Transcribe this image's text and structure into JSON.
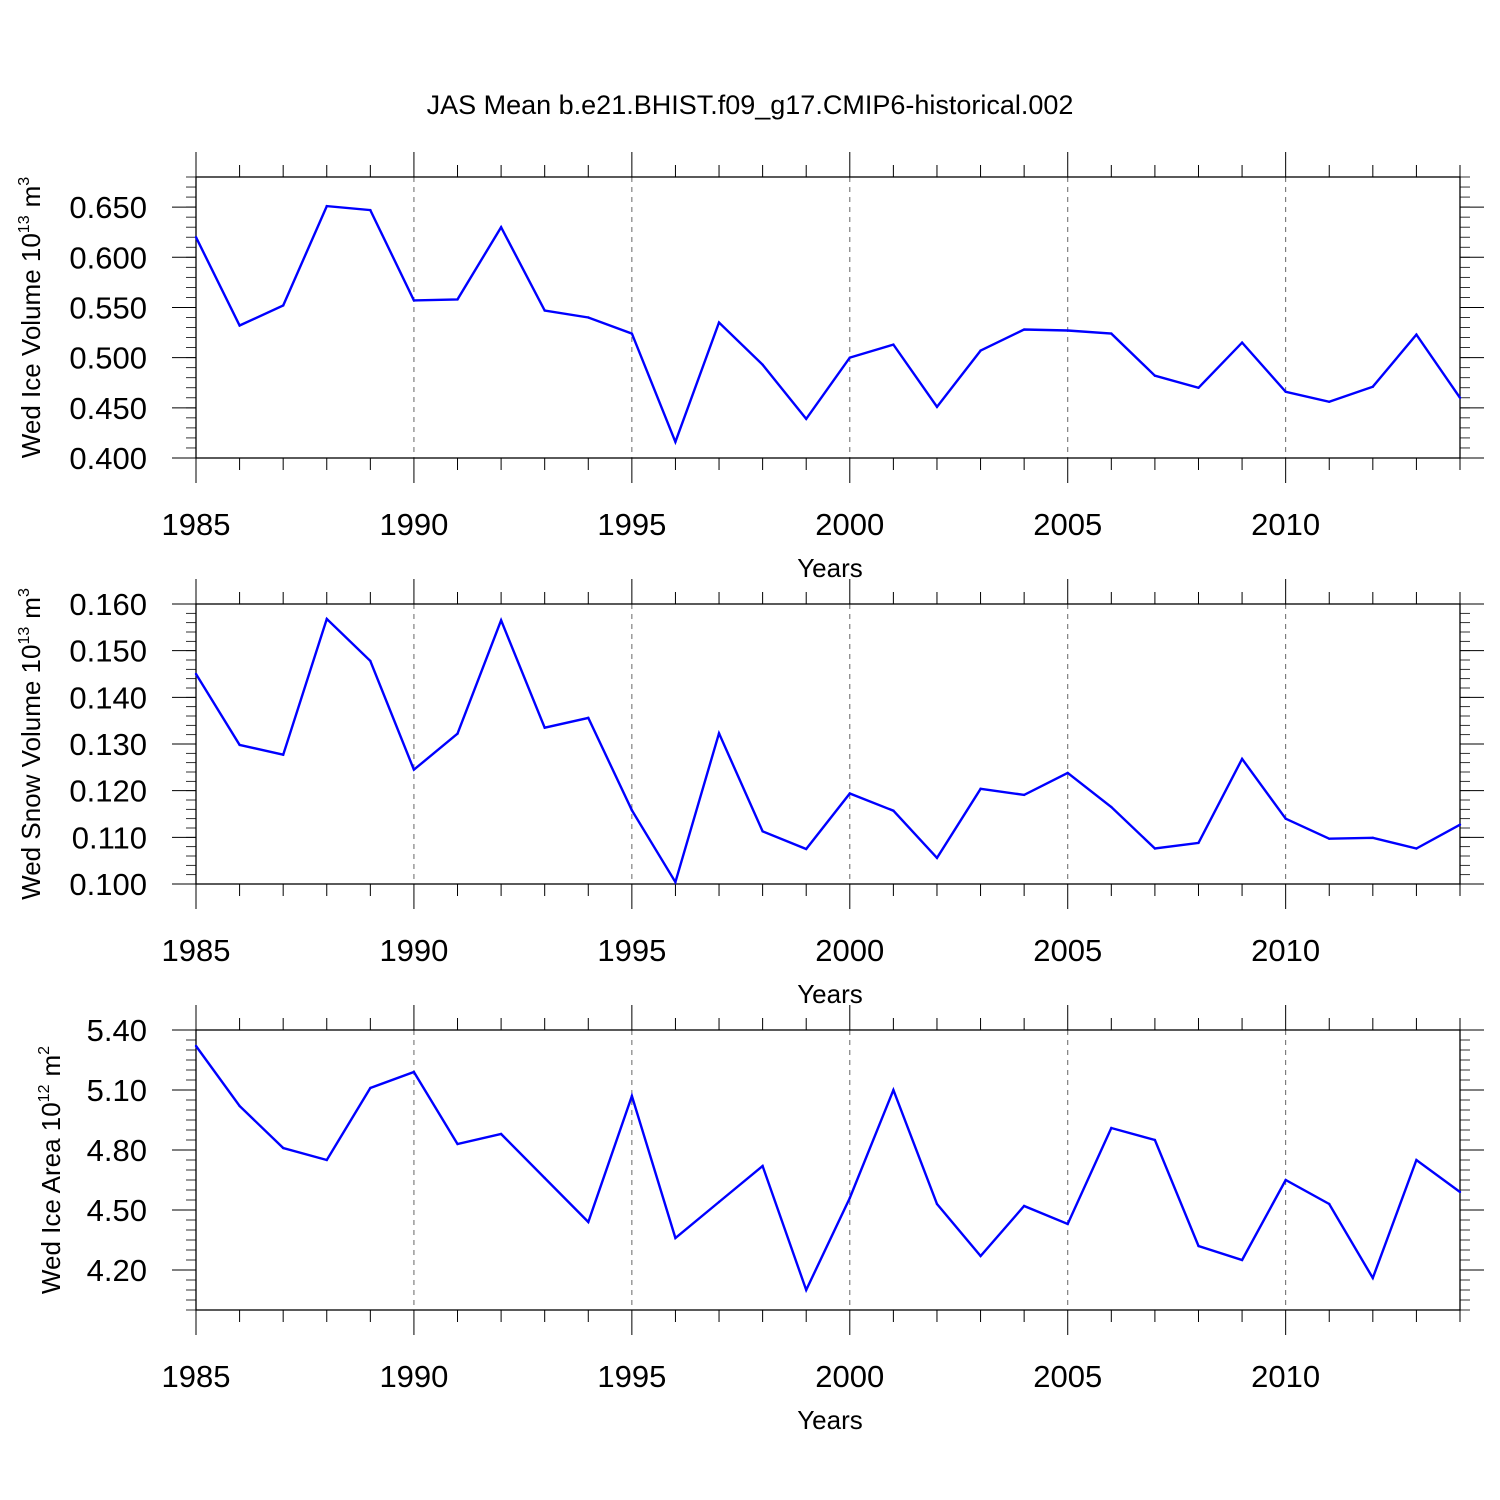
{
  "chart_data": {
    "title": "JAS Mean b.e21.BHIST.f09_g17.CMIP6-historical.002",
    "panels": [
      {
        "type": "line",
        "ylabel": "Wed Ice Volume 10",
        "ylabel_exp": "13",
        "ylabel_unit": "m",
        "ylabel_unit_exp": "3",
        "xlabel": "Years",
        "xlim": [
          1985,
          2014
        ],
        "ylim": [
          0.4,
          0.68
        ],
        "yticks": [
          "0.400",
          "0.450",
          "0.500",
          "0.550",
          "0.600",
          "0.650"
        ],
        "xticks": [
          "1985",
          "1990",
          "1995",
          "2000",
          "2005",
          "2010"
        ],
        "grid": "vertical dashed at major x ticks",
        "color": "#0000ff",
        "x": [
          1985,
          1986,
          1987,
          1988,
          1989,
          1990,
          1991,
          1992,
          1993,
          1994,
          1995,
          1996,
          1997,
          1998,
          1999,
          2000,
          2001,
          2002,
          2003,
          2004,
          2005,
          2006,
          2007,
          2008,
          2009,
          2010,
          2011,
          2012,
          2013,
          2014
        ],
        "values": [
          0.62,
          0.532,
          0.552,
          0.651,
          0.647,
          0.557,
          0.558,
          0.63,
          0.547,
          0.54,
          0.524,
          0.416,
          0.535,
          0.493,
          0.439,
          0.5,
          0.513,
          0.451,
          0.507,
          0.528,
          0.527,
          0.524,
          0.482,
          0.47,
          0.515,
          0.466,
          0.456,
          0.471,
          0.523,
          0.46
        ]
      },
      {
        "type": "line",
        "ylabel": "Wed Snow Volume 10",
        "ylabel_exp": "13",
        "ylabel_unit": "m",
        "ylabel_unit_exp": "3",
        "xlabel": "Years",
        "xlim": [
          1985,
          2014
        ],
        "ylim": [
          0.1,
          0.16
        ],
        "yticks": [
          "0.100",
          "0.110",
          "0.120",
          "0.130",
          "0.140",
          "0.150",
          "0.160"
        ],
        "xticks": [
          "1985",
          "1990",
          "1995",
          "2000",
          "2005",
          "2010"
        ],
        "grid": "vertical dashed at major x ticks",
        "color": "#0000ff",
        "x": [
          1985,
          1986,
          1987,
          1988,
          1989,
          1990,
          1991,
          1992,
          1993,
          1994,
          1995,
          1996,
          1997,
          1998,
          1999,
          2000,
          2001,
          2002,
          2003,
          2004,
          2005,
          2006,
          2007,
          2008,
          2009,
          2010,
          2011,
          2012,
          2013,
          2014
        ],
        "values": [
          0.145,
          0.1298,
          0.1277,
          0.1568,
          0.1478,
          0.1245,
          0.1322,
          0.1565,
          0.1335,
          0.1356,
          0.1158,
          0.1004,
          0.1323,
          0.1113,
          0.1075,
          0.1194,
          0.1157,
          0.1056,
          0.1204,
          0.1191,
          0.1238,
          0.1165,
          0.1076,
          0.1088,
          0.1268,
          0.114,
          0.1097,
          0.1099,
          0.1076,
          0.1127
        ]
      },
      {
        "type": "line",
        "ylabel": "Wed Ice Area 10",
        "ylabel_exp": "12",
        "ylabel_unit": "m",
        "ylabel_unit_exp": "2",
        "xlabel": "Years",
        "xlim": [
          1985,
          2014
        ],
        "ylim": [
          4.0,
          5.4
        ],
        "yticks": [
          "4.20",
          "4.50",
          "4.80",
          "5.10",
          "5.40"
        ],
        "xticks": [
          "1985",
          "1990",
          "1995",
          "2000",
          "2005",
          "2010"
        ],
        "grid": "vertical dashed at major x ticks",
        "color": "#0000ff",
        "x": [
          1985,
          1986,
          1987,
          1988,
          1989,
          1990,
          1991,
          1992,
          1993,
          1994,
          1995,
          1996,
          1997,
          1998,
          1999,
          2000,
          2001,
          2002,
          2003,
          2004,
          2005,
          2006,
          2007,
          2008,
          2009,
          2010,
          2011,
          2012,
          2013,
          2014
        ],
        "values": [
          5.32,
          5.02,
          4.81,
          4.75,
          5.11,
          5.19,
          4.83,
          4.88,
          4.66,
          4.44,
          5.07,
          4.36,
          4.54,
          4.72,
          4.1,
          4.56,
          5.1,
          4.53,
          4.27,
          4.52,
          4.43,
          4.91,
          4.85,
          4.32,
          4.25,
          4.65,
          4.53,
          4.16,
          4.75,
          4.59
        ]
      }
    ]
  }
}
